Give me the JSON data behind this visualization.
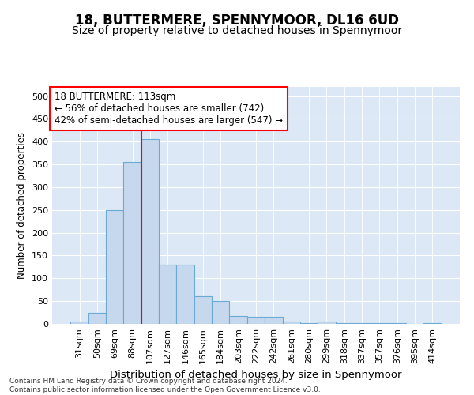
{
  "title": "18, BUTTERMERE, SPENNYMOOR, DL16 6UD",
  "subtitle": "Size of property relative to detached houses in Spennymoor",
  "xlabel": "Distribution of detached houses by size in Spennymoor",
  "ylabel": "Number of detached properties",
  "categories": [
    "31sqm",
    "50sqm",
    "69sqm",
    "88sqm",
    "107sqm",
    "127sqm",
    "146sqm",
    "165sqm",
    "184sqm",
    "203sqm",
    "222sqm",
    "242sqm",
    "261sqm",
    "280sqm",
    "299sqm",
    "318sqm",
    "337sqm",
    "357sqm",
    "376sqm",
    "395sqm",
    "414sqm"
  ],
  "values": [
    5,
    25,
    250,
    355,
    405,
    130,
    130,
    60,
    50,
    18,
    16,
    15,
    5,
    1,
    6,
    1,
    2,
    1,
    1,
    0,
    1
  ],
  "bar_color": "#c5d8ee",
  "bar_edgecolor": "#6aaad4",
  "vline_index": 4,
  "vline_color": "red",
  "annotation_text": "18 BUTTERMERE: 113sqm\n← 56% of detached houses are smaller (742)\n42% of semi-detached houses are larger (547) →",
  "annotation_box_color": "white",
  "annotation_box_edgecolor": "red",
  "ylim": [
    0,
    520
  ],
  "yticks": [
    0,
    50,
    100,
    150,
    200,
    250,
    300,
    350,
    400,
    450,
    500
  ],
  "background_color": "#dce8f5",
  "footer": "Contains HM Land Registry data © Crown copyright and database right 2024.\nContains public sector information licensed under the Open Government Licence v3.0.",
  "title_fontsize": 12,
  "subtitle_fontsize": 10,
  "xlabel_fontsize": 9.5,
  "ylabel_fontsize": 8.5,
  "tick_fontsize": 8,
  "annotation_fontsize": 8.5,
  "footer_fontsize": 6.5
}
